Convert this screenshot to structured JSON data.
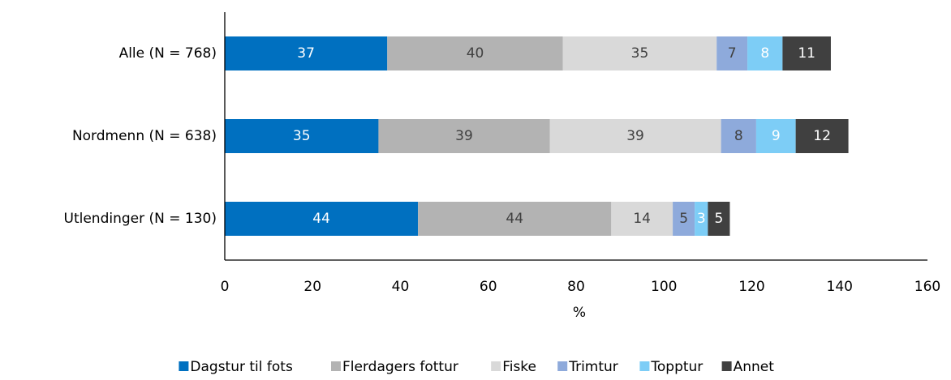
{
  "chart_data": {
    "type": "bar",
    "orientation": "horizontal",
    "stacked": true,
    "categories": [
      "Alle (N = 768)",
      "Nordmenn (N = 638)",
      "Utlendinger (N = 130)"
    ],
    "series": [
      {
        "name": "Dagstur til fots",
        "color": "#0070c0",
        "values": [
          37,
          35,
          44
        ]
      },
      {
        "name": "Flerdagers fottur",
        "color": "#b3b3b3",
        "values": [
          40,
          39,
          44
        ]
      },
      {
        "name": "Fiske",
        "color": "#d9d9d9",
        "values": [
          35,
          39,
          14
        ]
      },
      {
        "name": "Trimtur",
        "color": "#8eaadb",
        "values": [
          7,
          8,
          5
        ]
      },
      {
        "name": "Topptur",
        "color": "#7dcdf6",
        "values": [
          8,
          9,
          3
        ]
      },
      {
        "name": "Annet",
        "color": "#404040",
        "values": [
          11,
          12,
          5
        ]
      }
    ],
    "xlabel": "%",
    "xlim": [
      0,
      160
    ],
    "xticks": [
      0,
      20,
      40,
      60,
      80,
      100,
      120,
      140,
      160
    ],
    "grid": false,
    "legend": "bottom"
  }
}
